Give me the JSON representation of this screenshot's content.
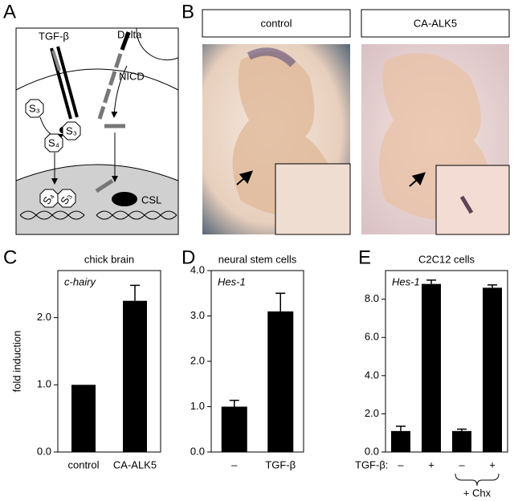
{
  "panel_labels": [
    "A",
    "B",
    "C",
    "D",
    "E"
  ],
  "diagram": {
    "ligand": "TGF-β",
    "delta": "Delta",
    "nicd": "NICD",
    "csl": "CSL",
    "s3": "S₃",
    "s4": "S₄"
  },
  "photos": {
    "headers": [
      "control",
      "CA-ALK5"
    ]
  },
  "chart_data": [
    {
      "type": "bar",
      "title": "chick brain",
      "annotation": "c-hairy",
      "y_label": "fold induction",
      "categories": [
        "control",
        "CA-ALK5"
      ],
      "values": [
        1.0,
        2.25
      ],
      "errors": [
        null,
        0.23
      ],
      "color": "#000000",
      "ylim": [
        0,
        2.7
      ],
      "yticks": [
        {
          "value": 0,
          "label": "0.0"
        },
        {
          "value": 1,
          "label": "1.0"
        },
        {
          "value": 2,
          "label": "2.0"
        }
      ]
    },
    {
      "type": "bar",
      "title": "neural stem cells",
      "annotation": "Hes-1",
      "categories": [
        "–",
        "TGF-β"
      ],
      "values": [
        1.0,
        3.1
      ],
      "errors": [
        0.14,
        0.4
      ],
      "color": "#000000",
      "ylim": [
        0,
        4
      ],
      "yticks": [
        {
          "value": 0,
          "label": "0.0"
        },
        {
          "value": 1,
          "label": "1.0"
        },
        {
          "value": 2,
          "label": "2.0"
        },
        {
          "value": 3,
          "label": "3.0"
        },
        {
          "value": 4,
          "label": "4.0"
        }
      ]
    },
    {
      "type": "bar",
      "title": "C2C12 cells",
      "annotation": "Hes-1",
      "x_label": "TGF-β:",
      "group_label": "+ Chx",
      "categories": [
        "–",
        "+",
        "–",
        "+"
      ],
      "values": [
        1.1,
        8.8,
        1.1,
        8.6
      ],
      "errors": [
        0.25,
        0.2,
        0.1,
        0.15
      ],
      "color": "#000000",
      "ylim": [
        0,
        9.5
      ],
      "yticks": [
        {
          "value": 0,
          "label": "0.0"
        },
        {
          "value": 2,
          "label": "2.0"
        },
        {
          "value": 4,
          "label": "4.0"
        },
        {
          "value": 6,
          "label": "6.0"
        },
        {
          "value": 8,
          "label": "8.0"
        }
      ]
    }
  ]
}
